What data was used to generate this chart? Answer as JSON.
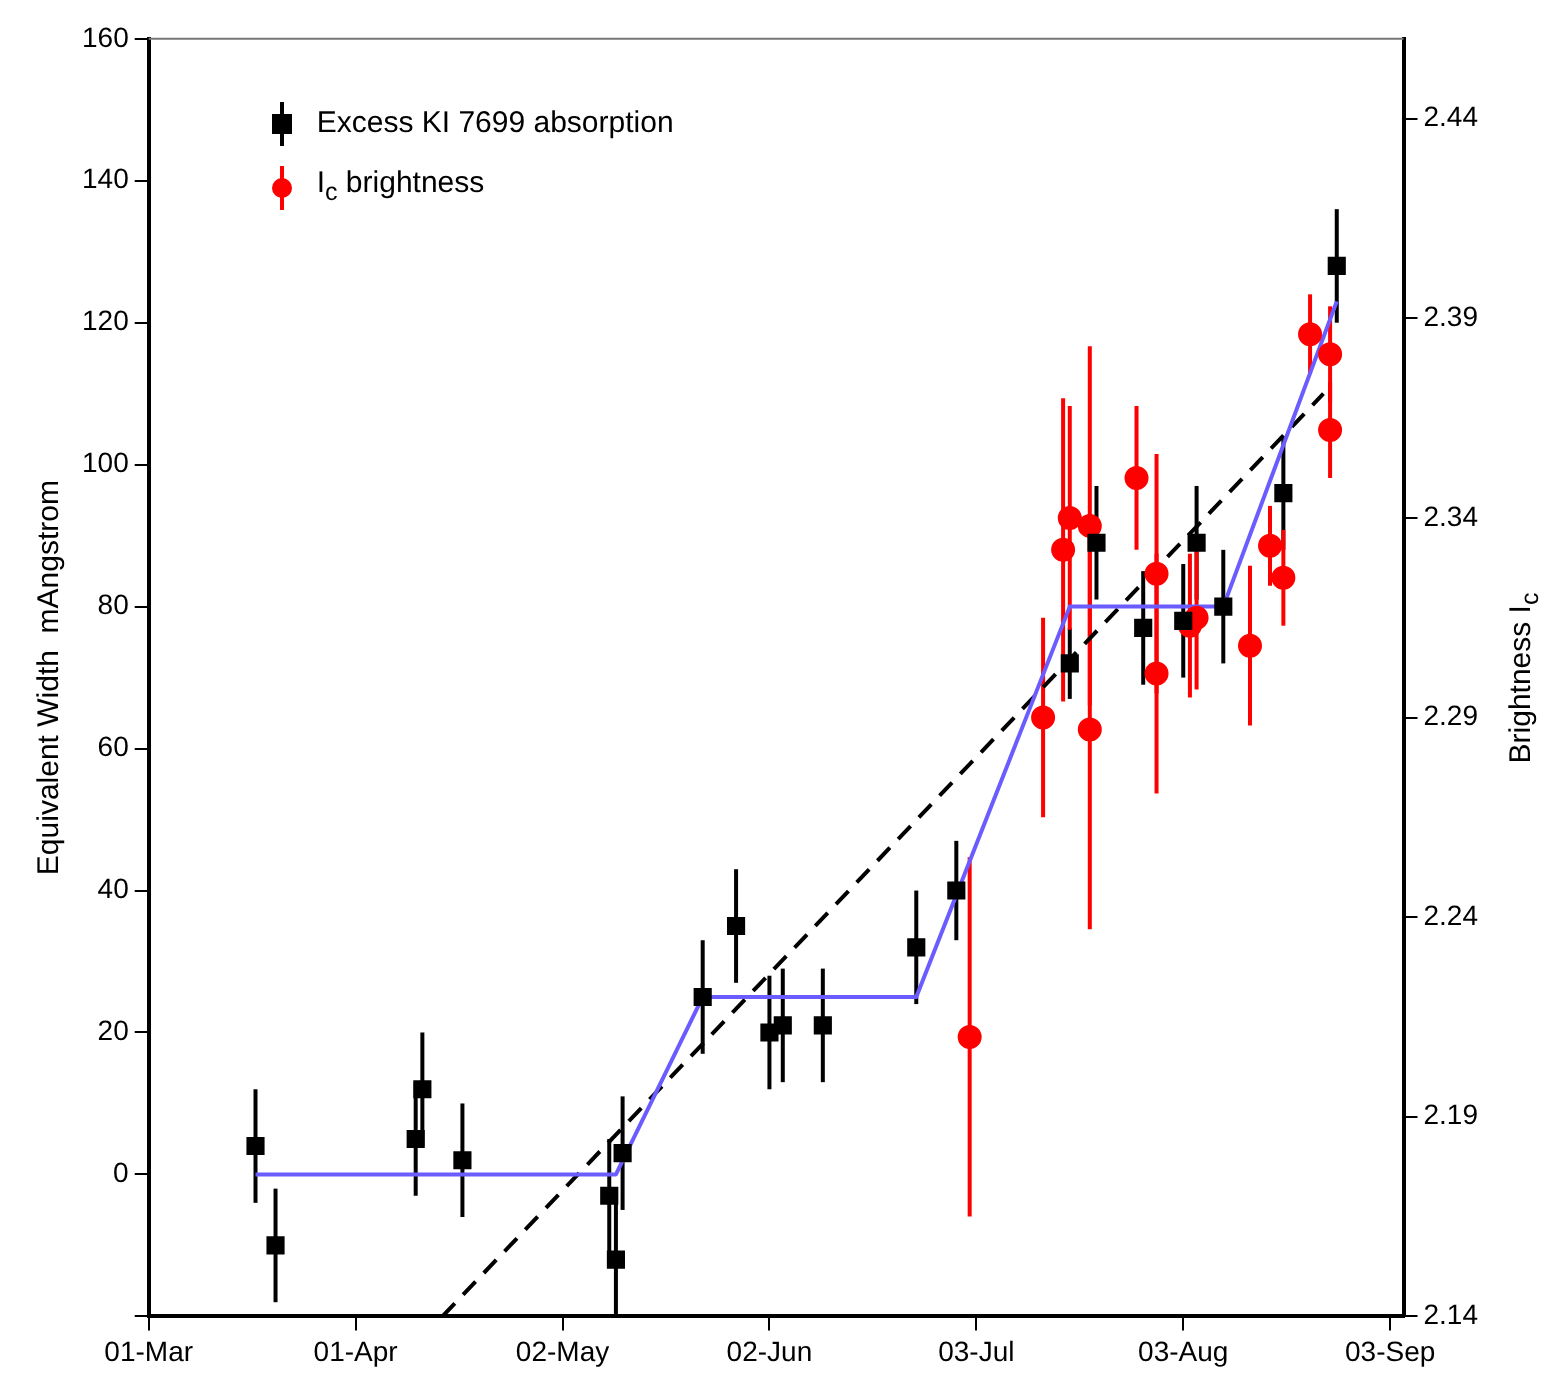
{
  "chart_data": {
    "type": "scatter",
    "xlabel": null,
    "ylabel": "Equivalent Width  mAngstrom",
    "y2label": "Brightness I$_{c}$",
    "legend": "top left",
    "grid": false,
    "xlim": [
      "--03-01",
      "--09-05"
    ],
    "xticks": [
      {
        "value": "--03-01",
        "label": "01-Mar"
      },
      {
        "value": "--04-01",
        "label": "01-Apr"
      },
      {
        "value": "--05-02",
        "label": "02-May"
      },
      {
        "value": "--06-02",
        "label": "02-Jun"
      },
      {
        "value": "--07-03",
        "label": "03-Jul"
      },
      {
        "value": "--08-03",
        "label": "03-Aug"
      },
      {
        "value": "--09-03",
        "label": "03-Sep"
      }
    ],
    "ylim": [
      -20,
      160
    ],
    "yticks": [
      {
        "value": -20,
        "label": null
      },
      0,
      20,
      40,
      60,
      80,
      100,
      120,
      140,
      160
    ],
    "y2lim": [
      2.14,
      2.46
    ],
    "y2ticks": [
      2.14,
      2.19,
      2.24,
      2.29,
      2.34,
      2.39,
      2.44
    ],
    "series": [
      {
        "type": "line",
        "color": "#6a5cff",
        "marker": "none",
        "line_style": "solid",
        "x": [
          "--03-17",
          "--05-10",
          "--05-23",
          "--06-24",
          "--07-17",
          "--08-09",
          "--08-26"
        ],
        "values": [
          0,
          0,
          25,
          25,
          80,
          80,
          123
        ]
      },
      {
        "type": "line",
        "color": "#000000",
        "marker": "none",
        "line_style": "dashed",
        "x": [
          "--04-14",
          "--08-24"
        ],
        "values": [
          -20,
          110
        ]
      },
      {
        "type": "scatter",
        "name": "Excess KI 7699 absorption",
        "color": "#000000",
        "marker": "square",
        "x": [
          "--03-17",
          "--03-20",
          "--04-10",
          "--04-11",
          "--04-17",
          "--05-09",
          "--05-10",
          "--05-11",
          "--05-23",
          "--05-28",
          "--06-02",
          "--06-04",
          "--06-10",
          "--06-24",
          "--06-30",
          "--07-17",
          "--07-21",
          "--07-28",
          "--08-03",
          "--08-05",
          "--08-09",
          "--08-18",
          "--08-26"
        ],
        "values": [
          4,
          -10,
          5,
          12,
          2,
          -3,
          -12,
          3,
          25,
          35,
          20,
          21,
          21,
          32,
          40,
          72,
          89,
          77,
          78,
          89,
          80,
          96,
          128
        ],
        "errors": [
          8,
          8,
          8,
          8,
          8,
          8,
          8,
          8,
          8,
          8,
          8,
          8,
          8,
          8,
          7,
          5,
          8,
          8,
          8,
          8,
          8,
          8,
          8
        ]
      },
      {
        "type": "scatter",
        "name": "I$_{c}$ brightness",
        "color": "#ff0000",
        "marker": "circle",
        "axis": "y2",
        "x": [
          "--07-02",
          "--07-13",
          "--07-16",
          "--07-17",
          "--07-20",
          "--07-20",
          "--07-27",
          "--07-30",
          "--07-30",
          "--08-04",
          "--08-05",
          "--08-13",
          "--08-16",
          "--08-18",
          "--08-22",
          "--08-25",
          "--08-25"
        ],
        "values": [
          2.21,
          2.29,
          2.332,
          2.34,
          2.338,
          2.287,
          2.35,
          2.326,
          2.301,
          2.313,
          2.315,
          2.308,
          2.333,
          2.325,
          2.386,
          2.381,
          2.362
        ],
        "errors": [
          0.045,
          0.025,
          0.038,
          0.028,
          0.045,
          0.05,
          0.018,
          0.03,
          0.03,
          0.018,
          0.018,
          0.02,
          0.01,
          0.012,
          0.01,
          0.012,
          0.012
        ]
      }
    ]
  }
}
